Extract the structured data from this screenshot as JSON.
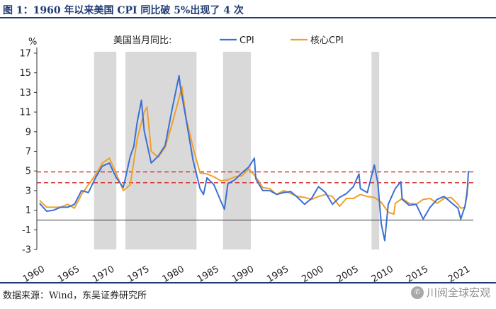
{
  "title": "图 1：1960 年以来美国 CPI 同比破 5%出现了 4 次",
  "source": "数据来源：Wind，东吴证券研究所",
  "watermark": "川阅全球宏观",
  "watermark_icon": "wechat-icon",
  "colors": {
    "cpi": "#3b6fd6",
    "core": "#f0a028",
    "threshold": "#d62828",
    "band": "#d9d9d9",
    "rule": "#1f3b73"
  },
  "chart_data": {
    "type": "line",
    "title": "图 1：1960 年以来美国 CPI 同比破 5%出现了 4 次",
    "ylabel": "%",
    "ylim": [
      -3,
      17
    ],
    "xlim": [
      1959.6,
      2022.2
    ],
    "yticks": [
      -3,
      -1,
      1,
      3,
      5,
      7,
      9,
      11,
      13,
      15,
      17
    ],
    "xticks": [
      1960,
      1965,
      1970,
      1975,
      1980,
      1985,
      1990,
      1995,
      2000,
      2005,
      2010,
      2015,
      2021
    ],
    "legend_title": "美国当月同比:",
    "legend_position": "top-center",
    "shaded_periods": [
      [
        1967.8,
        1971.0
      ],
      [
        1972.3,
        1982.5
      ],
      [
        1986.3,
        1990.3
      ],
      [
        2007.6,
        2008.7
      ]
    ],
    "reference_lines": [
      4.9,
      3.8
    ],
    "series": [
      {
        "name": "CPI",
        "x": [
          1960,
          1961,
          1962,
          1963,
          1964,
          1965,
          1966,
          1967,
          1968,
          1969,
          1970,
          1971,
          1972,
          1973,
          1973.5,
          1974,
          1974.6,
          1975,
          1976,
          1977,
          1978,
          1979,
          1979.5,
          1980,
          1980.2,
          1981,
          1982,
          1983,
          1983.5,
          1984,
          1985,
          1986,
          1986.5,
          1987,
          1988,
          1989,
          1990,
          1990.8,
          1991,
          1992,
          1993,
          1994,
          1995,
          1996,
          1997,
          1998,
          1999,
          2000,
          2001,
          2002,
          2003,
          2004,
          2005,
          2005.8,
          2006,
          2007,
          2008,
          2008.5,
          2009,
          2009.5,
          2010,
          2011,
          2011.8,
          2012,
          2013,
          2014,
          2015,
          2016,
          2017,
          2018,
          2019,
          2020,
          2020.4,
          2021,
          2021.3,
          2021.5
        ],
        "values": [
          1.7,
          0.9,
          1.0,
          1.3,
          1.3,
          1.6,
          3.0,
          2.8,
          4.3,
          5.5,
          5.8,
          4.3,
          3.3,
          6.5,
          7.5,
          10.0,
          12.2,
          9.1,
          5.8,
          6.5,
          7.6,
          11.3,
          13.0,
          14.7,
          13.5,
          10.3,
          6.1,
          3.2,
          2.6,
          4.3,
          3.6,
          1.9,
          1.1,
          3.7,
          4.1,
          4.8,
          5.4,
          6.3,
          4.2,
          3.0,
          3.0,
          2.6,
          2.8,
          2.9,
          2.3,
          1.6,
          2.2,
          3.4,
          2.8,
          1.6,
          2.3,
          2.7,
          3.4,
          4.7,
          3.2,
          2.8,
          5.6,
          3.8,
          -0.4,
          -2.1,
          1.6,
          3.2,
          3.9,
          2.1,
          1.5,
          1.6,
          0.1,
          1.3,
          2.1,
          2.4,
          1.8,
          1.2,
          0.1,
          1.4,
          2.6,
          5.0
        ]
      },
      {
        "name": "核心CPI",
        "x": [
          1960,
          1961,
          1962,
          1963,
          1964,
          1965,
          1966,
          1967,
          1968,
          1969,
          1970,
          1971,
          1972,
          1973,
          1974,
          1975,
          1975.4,
          1976,
          1977,
          1978,
          1979,
          1980,
          1980.4,
          1981,
          1982,
          1983,
          1984,
          1985,
          1986,
          1987,
          1988,
          1989,
          1990,
          1991,
          1992,
          1993,
          1994,
          1995,
          1996,
          1997,
          1998,
          1999,
          2000,
          2001,
          2002,
          2003,
          2004,
          2005,
          2006,
          2007,
          2008,
          2009,
          2010,
          2010.8,
          2011,
          2012,
          2013,
          2014,
          2015,
          2016,
          2017,
          2018,
          2019,
          2020,
          2020.4,
          2021,
          2021.3,
          2021.5
        ],
        "values": [
          2.0,
          1.3,
          1.3,
          1.3,
          1.6,
          1.2,
          2.6,
          3.6,
          4.6,
          5.8,
          6.3,
          4.7,
          3.0,
          3.6,
          8.3,
          11.0,
          11.5,
          7.0,
          6.4,
          7.4,
          9.8,
          12.4,
          13.6,
          10.4,
          7.4,
          4.8,
          4.7,
          4.4,
          4.0,
          4.1,
          4.4,
          4.5,
          5.2,
          4.4,
          3.3,
          3.2,
          2.6,
          3.0,
          2.7,
          2.4,
          2.3,
          2.1,
          2.4,
          2.6,
          2.4,
          1.4,
          2.2,
          2.2,
          2.6,
          2.4,
          2.3,
          1.8,
          0.8,
          0.6,
          1.7,
          2.2,
          1.7,
          1.6,
          2.1,
          2.2,
          1.7,
          2.2,
          2.3,
          1.6,
          1.2,
          1.3,
          3.0,
          3.8
        ]
      }
    ]
  }
}
